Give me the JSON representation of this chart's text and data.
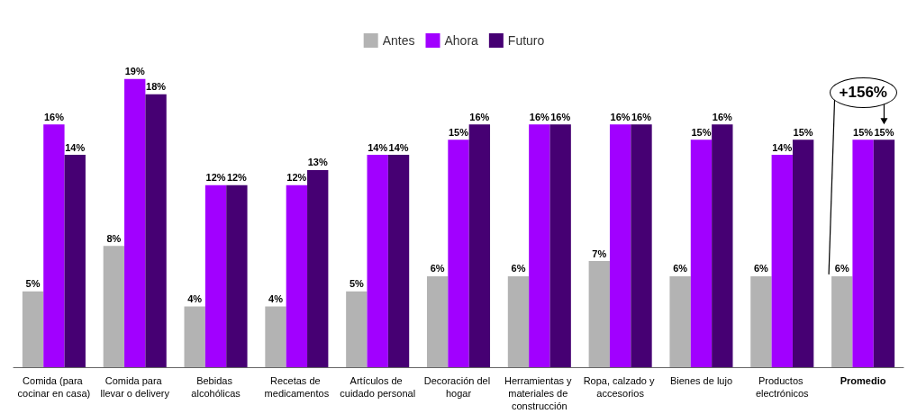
{
  "chart_data": {
    "type": "bar",
    "categories": [
      "Comida (para cocinar en casa)",
      "Comida para llevar o delivery",
      "Bebidas alcohólicas",
      "Recetas de medicamentos",
      "Artículos de cuidado personal",
      "Decoración del hogar",
      "Herramientas y materiales de construcción",
      "Ropa, calzado y accesorios",
      "Bienes de lujo",
      "Productos electrónicos",
      "Promedio"
    ],
    "series": [
      {
        "name": "Antes",
        "color": "#b3b3b3",
        "values": [
          5,
          8,
          4,
          4,
          5,
          6,
          6,
          7,
          6,
          6,
          6
        ],
        "value_labels": [
          "5%",
          "8%",
          "4%",
          "4%",
          "5%",
          "6%",
          "6%",
          "7%",
          "6%",
          "6%",
          "6%"
        ]
      },
      {
        "name": "Ahora",
        "color": "#a100ff",
        "values": [
          16,
          19,
          12,
          12,
          14,
          15,
          16,
          16,
          15,
          14,
          15
        ],
        "value_labels": [
          "16%",
          "19%",
          "12%",
          "12%",
          "14%",
          "15%",
          "16%",
          "16%",
          "15%",
          "14%",
          "15%"
        ]
      },
      {
        "name": "Futuro",
        "color": "#460073",
        "values": [
          14,
          18,
          12,
          13,
          14,
          16,
          16,
          16,
          16,
          15,
          15
        ],
        "value_labels": [
          "14%",
          "18%",
          "12%",
          "13%",
          "14%",
          "16%",
          "16%",
          "16%",
          "16%",
          "15%",
          "15%"
        ]
      }
    ],
    "legend": "top",
    "annotations": [
      "+156%"
    ]
  }
}
